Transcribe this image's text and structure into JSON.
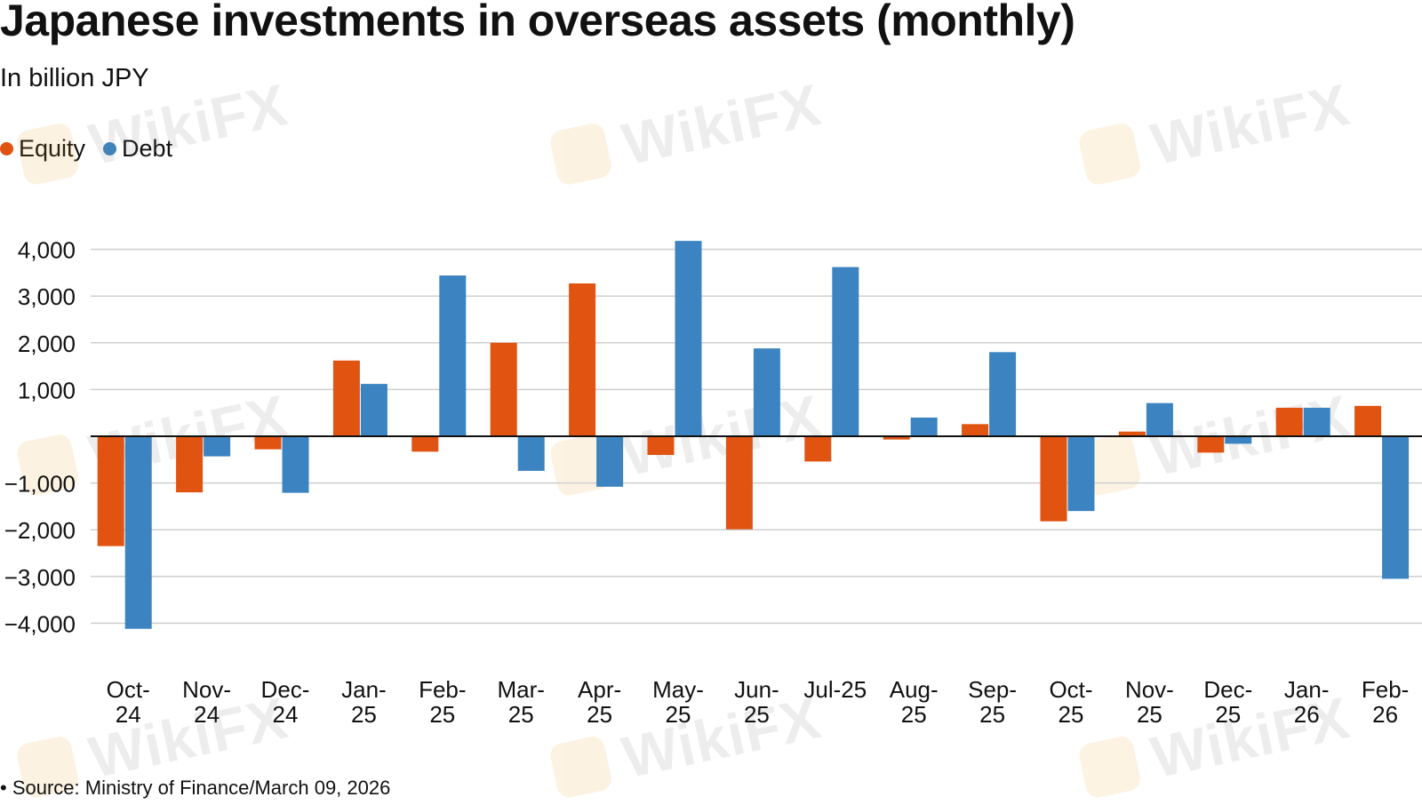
{
  "title": "Japanese investments in overseas assets (monthly)",
  "subtitle": "In billion JPY",
  "source": "• Source: Ministry of Finance/March 09, 2026",
  "watermark": "WikiFX",
  "colors": {
    "equity": "#e05310",
    "debt": "#3b84c1",
    "grid": "#cfcfcf",
    "zero_line": "#111111"
  },
  "chart_data": {
    "type": "bar",
    "title": "Japanese investments in overseas assets (monthly)",
    "ylabel": "In billion JPY",
    "xlabel": "",
    "ylim": [
      -4000,
      4000
    ],
    "yticks": [
      {
        "value": 4000,
        "label": "4,000"
      },
      {
        "value": 3000,
        "label": "3,000"
      },
      {
        "value": 2000,
        "label": "2,000"
      },
      {
        "value": 1000,
        "label": "1,000"
      },
      {
        "value": -1000,
        "label": "−1,000"
      },
      {
        "value": -2000,
        "label": "−2,000"
      },
      {
        "value": -3000,
        "label": "−3,000"
      },
      {
        "value": -4000,
        "label": "−4,000"
      }
    ],
    "categories": [
      [
        "Oct-",
        "24"
      ],
      [
        "Nov-",
        "24"
      ],
      [
        "Dec-",
        "24"
      ],
      [
        "Jan-",
        "25"
      ],
      [
        "Feb-",
        "25"
      ],
      [
        "Mar-",
        "25"
      ],
      [
        "Apr-",
        "25"
      ],
      [
        "May-",
        "25"
      ],
      [
        "Jun-",
        "25"
      ],
      [
        "Jul-25"
      ],
      [
        "Aug-",
        "25"
      ],
      [
        "Sep-",
        "25"
      ],
      [
        "Oct-",
        "25"
      ],
      [
        "Nov-",
        "25"
      ],
      [
        "Dec-",
        "25"
      ],
      [
        "Jan-",
        "26"
      ],
      [
        "Feb-",
        "26"
      ]
    ],
    "series": [
      {
        "name": "Equity",
        "color": "#e05310",
        "values": [
          -2350,
          -1200,
          -280,
          1620,
          -330,
          2000,
          3270,
          -400,
          -1990,
          -540,
          -70,
          260,
          -1820,
          100,
          -350,
          610,
          650
        ]
      },
      {
        "name": "Debt",
        "color": "#3b84c1",
        "values": [
          -4120,
          -430,
          -1210,
          1120,
          3440,
          -740,
          -1080,
          4180,
          1880,
          3620,
          400,
          1800,
          -1600,
          710,
          -160,
          610,
          -3050
        ]
      }
    ],
    "legend_position": "top-left",
    "grid": true
  }
}
